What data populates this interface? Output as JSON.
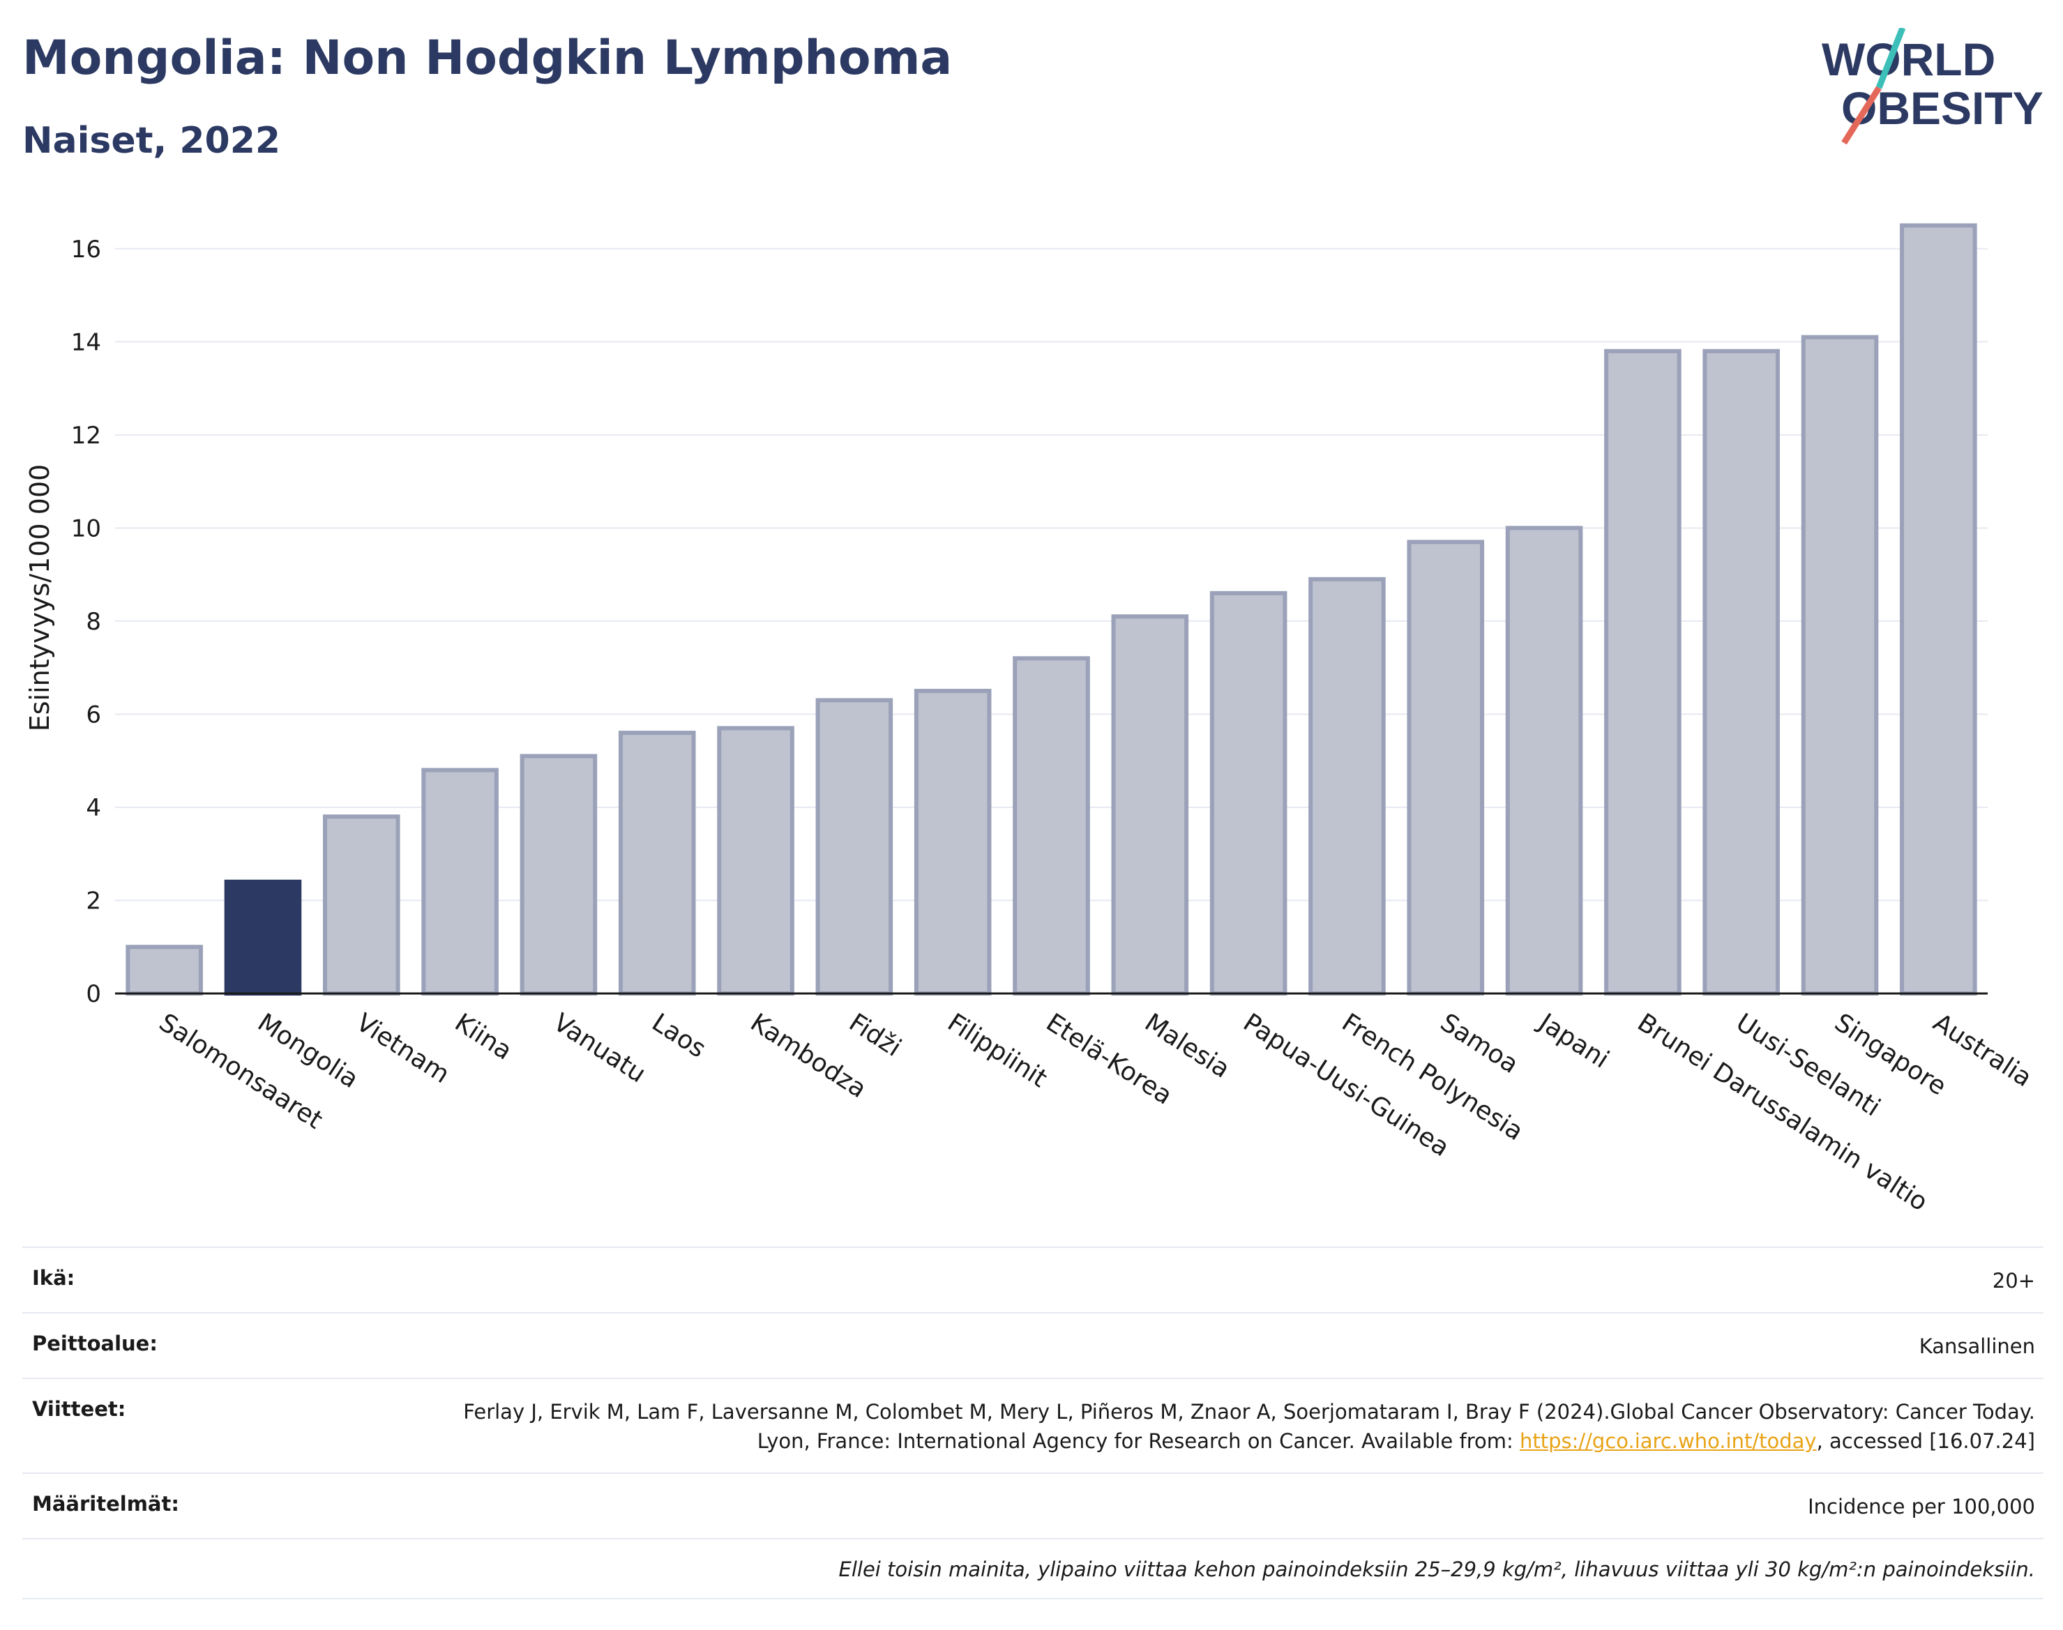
{
  "header": {
    "title": "Mongolia: Non Hodgkin Lymphoma",
    "subtitle": "Naiset, 2022",
    "logo_line1": "WORLD",
    "logo_line2": "OBESITY"
  },
  "colors": {
    "highlight": "#2c3a63",
    "bar_fill": "#bfc3d0",
    "bar_stroke": "#9aa1b8",
    "grid": "#e6e9f2",
    "axis": "#1a1a1a",
    "logo_teal": "#3bbfb8",
    "logo_red": "#e4685a"
  },
  "chart_data": {
    "type": "bar",
    "title": "Mongolia: Non Hodgkin Lymphoma",
    "subtitle": "Naiset, 2022",
    "xlabel": "",
    "ylabel": "Esiintyvyys/100 000",
    "ylim": [
      0,
      17
    ],
    "yticks": [
      0,
      2,
      4,
      6,
      8,
      10,
      12,
      14,
      16
    ],
    "grid": true,
    "highlight_category": "Mongolia",
    "categories": [
      "Salomonsaaret",
      "Mongolia",
      "Vietnam",
      "Kiina",
      "Vanuatu",
      "Laos",
      "Kambodza",
      "Fidži",
      "Filippiinit",
      "Etelä-Korea",
      "Malesia",
      "Papua-Uusi-Guinea",
      "French Polynesia",
      "Samoa",
      "Japani",
      "Brunei Darussalamin valtio",
      "Uusi-Seelanti",
      "Singapore",
      "Australia"
    ],
    "values": [
      1.0,
      2.4,
      3.8,
      4.8,
      5.1,
      5.6,
      5.7,
      6.3,
      6.5,
      7.2,
      8.1,
      8.6,
      8.9,
      9.7,
      10.0,
      13.8,
      13.8,
      14.1,
      16.5
    ]
  },
  "meta": {
    "age_label": "Ikä:",
    "age_value": "20+",
    "coverage_label": "Peittoalue:",
    "coverage_value": "Kansallinen",
    "refs_label": "Viitteet:",
    "refs_text1": "Ferlay J, Ervik M, Lam F, Laversanne M, Colombet M, Mery L, Piñeros M, Znaor A, Soerjomataram I, Bray F (2024).Global Cancer Observatory: Cancer Today. Lyon, France: International Agency for Research on Cancer. Available from: ",
    "refs_link": "https://gco.iarc.who.int/today",
    "refs_text2": ", accessed [16.07.24]",
    "defs_label": "Määritelmät:",
    "defs_value": "Incidence per 100,000",
    "note": "Ellei toisin mainita, ylipaino viittaa kehon painoindeksiin 25–29,9 kg/m², lihavuus viittaa yli 30 kg/m²:n painoindeksiin."
  }
}
